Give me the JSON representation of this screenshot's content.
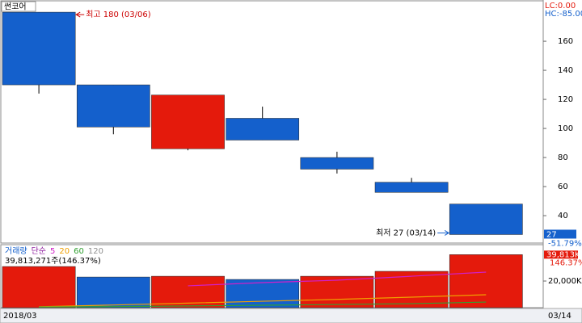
{
  "stock_name": "썬코어",
  "chart_data": [
    {
      "type": "candlestick",
      "lc_label": "LC:0.00",
      "hc_label": "HC:-85.00",
      "open": [
        180,
        130,
        86,
        107,
        80,
        63,
        48
      ],
      "high": [
        180,
        130,
        123,
        115,
        84,
        66,
        48
      ],
      "low": [
        124,
        96,
        85,
        92,
        69,
        56,
        27
      ],
      "close": [
        130,
        101,
        123,
        92,
        72,
        56,
        27
      ],
      "up_color": "#e41a0c",
      "down_color": "#1460cc",
      "ylim": [
        21.7,
        185.6
      ],
      "yticks": [
        40,
        60,
        80,
        100,
        120,
        140,
        160
      ],
      "high_annotation": "최고 180 (03/06)",
      "low_annotation": "최저 27 (03/14)",
      "last_price": 27,
      "change_label": "-51.79%",
      "x_start_label": "2018/03",
      "x_end_label": "03/14"
    },
    {
      "type": "bar",
      "legend_title": "거래량",
      "ma_type": "단순",
      "values": [
        30900,
        23000,
        23600,
        21200,
        23600,
        27300,
        39813
      ],
      "value_labels": [
        null,
        null,
        null,
        null,
        null,
        null,
        "39,813K"
      ],
      "colors": [
        "#e41a0c",
        "#1460cc",
        "#e41a0c",
        "#1460cc",
        "#e41a0c",
        "#e41a0c",
        "#e41a0c"
      ],
      "summary_label": "39,813,271주(146.37%)",
      "ratio_label": "146.37%",
      "ylim": [
        0,
        46700
      ],
      "yticks": [
        {
          "value": 20000,
          "label": "20,000K"
        }
      ],
      "series": [
        {
          "name": "5",
          "color": "#d020c8",
          "values": [
            null,
            null,
            16400,
            18800,
            20600,
            23600,
            26700
          ]
        },
        {
          "name": "20",
          "color": "#f0a000",
          "values": [
            700,
            2000,
            3400,
            4800,
            6200,
            7900,
            9700
          ]
        },
        {
          "name": "60",
          "color": "#30a030",
          "values": [
            500,
            800,
            1300,
            1800,
            2400,
            3000,
            4200
          ]
        },
        {
          "name": "120",
          "color": "#909090",
          "values": []
        }
      ]
    }
  ]
}
